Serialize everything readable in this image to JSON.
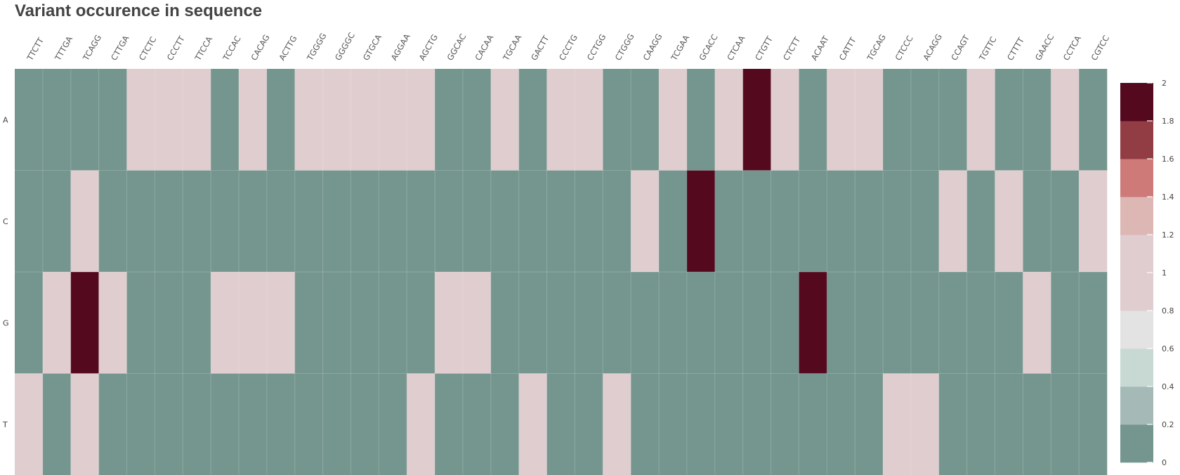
{
  "chart_data": {
    "type": "heatmap",
    "title": "Variant occurence in sequence",
    "x": [
      "TTCTT",
      "TTTGA",
      "TCAGG",
      "CTTGA",
      "CTCTC",
      "CCCTT",
      "TTCCA",
      "TCCAC",
      "CACAG",
      "ACTTG",
      "TGGGG",
      "GGGGC",
      "GTGCA",
      "AGGAA",
      "AGCTG",
      "GGCAC",
      "CACAA",
      "TGCAA",
      "GACTT",
      "CCCTG",
      "CCTGG",
      "CTGGG",
      "CAAGG",
      "TCGAA",
      "GCACC",
      "CTCAA",
      "CTGTT",
      "CTCTT",
      "ACAAT",
      "CATTT",
      "TGCAG",
      "CTCCC",
      "ACAGG",
      "CCAGT",
      "TGTTC",
      "CTTTT",
      "GAACC",
      "CCTCA",
      "CGTCC"
    ],
    "y": [
      "A",
      "C",
      "G",
      "T"
    ],
    "z": [
      [
        0,
        0,
        0,
        0,
        1,
        1,
        1,
        0,
        1,
        0,
        1,
        1,
        1,
        1,
        1,
        0,
        0,
        1,
        0,
        1,
        1,
        0,
        0,
        1,
        0,
        1,
        2,
        1,
        0,
        1,
        1,
        0,
        0,
        0,
        1,
        0,
        0,
        1,
        0
      ],
      [
        0,
        0,
        1,
        0,
        0,
        0,
        0,
        0,
        0,
        0,
        0,
        0,
        0,
        0,
        0,
        0,
        0,
        0,
        0,
        0,
        0,
        0,
        1,
        0,
        2,
        0,
        0,
        0,
        0,
        0,
        0,
        0,
        0,
        1,
        0,
        1,
        0,
        0,
        1
      ],
      [
        0,
        1,
        2,
        1,
        0,
        0,
        0,
        1,
        1,
        1,
        0,
        0,
        0,
        0,
        0,
        1,
        1,
        0,
        0,
        0,
        0,
        0,
        0,
        0,
        0,
        0,
        0,
        0,
        2,
        0,
        0,
        0,
        0,
        0,
        0,
        0,
        1,
        0,
        0
      ],
      [
        1,
        0,
        1,
        0,
        0,
        0,
        0,
        0,
        0,
        0,
        0,
        0,
        0,
        0,
        1,
        0,
        0,
        0,
        1,
        0,
        0,
        1,
        0,
        0,
        0,
        0,
        0,
        0,
        0,
        0,
        0,
        1,
        1,
        0,
        0,
        0,
        0,
        0,
        0
      ]
    ],
    "zlim": [
      0,
      2
    ],
    "colorbar": {
      "ticks": [
        "0",
        "0.2",
        "0.4",
        "0.6",
        "0.8",
        "1",
        "1.2",
        "1.4",
        "1.6",
        "1.8",
        "2"
      ],
      "bins": [
        {
          "from": 0.0,
          "to": 0.2,
          "color": "#74968E"
        },
        {
          "from": 0.2,
          "to": 0.4,
          "color": "#A5BAB6"
        },
        {
          "from": 0.4,
          "to": 0.6,
          "color": "#C8D9D4"
        },
        {
          "from": 0.6,
          "to": 0.8,
          "color": "#E3E3E3"
        },
        {
          "from": 0.8,
          "to": 1.0,
          "color": "#E0CDCF"
        },
        {
          "from": 1.0,
          "to": 1.2,
          "color": "#E0CDCF"
        },
        {
          "from": 1.2,
          "to": 1.4,
          "color": "#DDB7B4"
        },
        {
          "from": 1.4,
          "to": 1.6,
          "color": "#CD7A79"
        },
        {
          "from": 1.6,
          "to": 1.8,
          "color": "#923C44"
        },
        {
          "from": 1.8,
          "to": 2.0,
          "color": "#54091F"
        }
      ]
    },
    "cell_colors": {
      "0": "#74968E",
      "1": "#E0CDCF",
      "2": "#54091F"
    },
    "legend": "right"
  }
}
